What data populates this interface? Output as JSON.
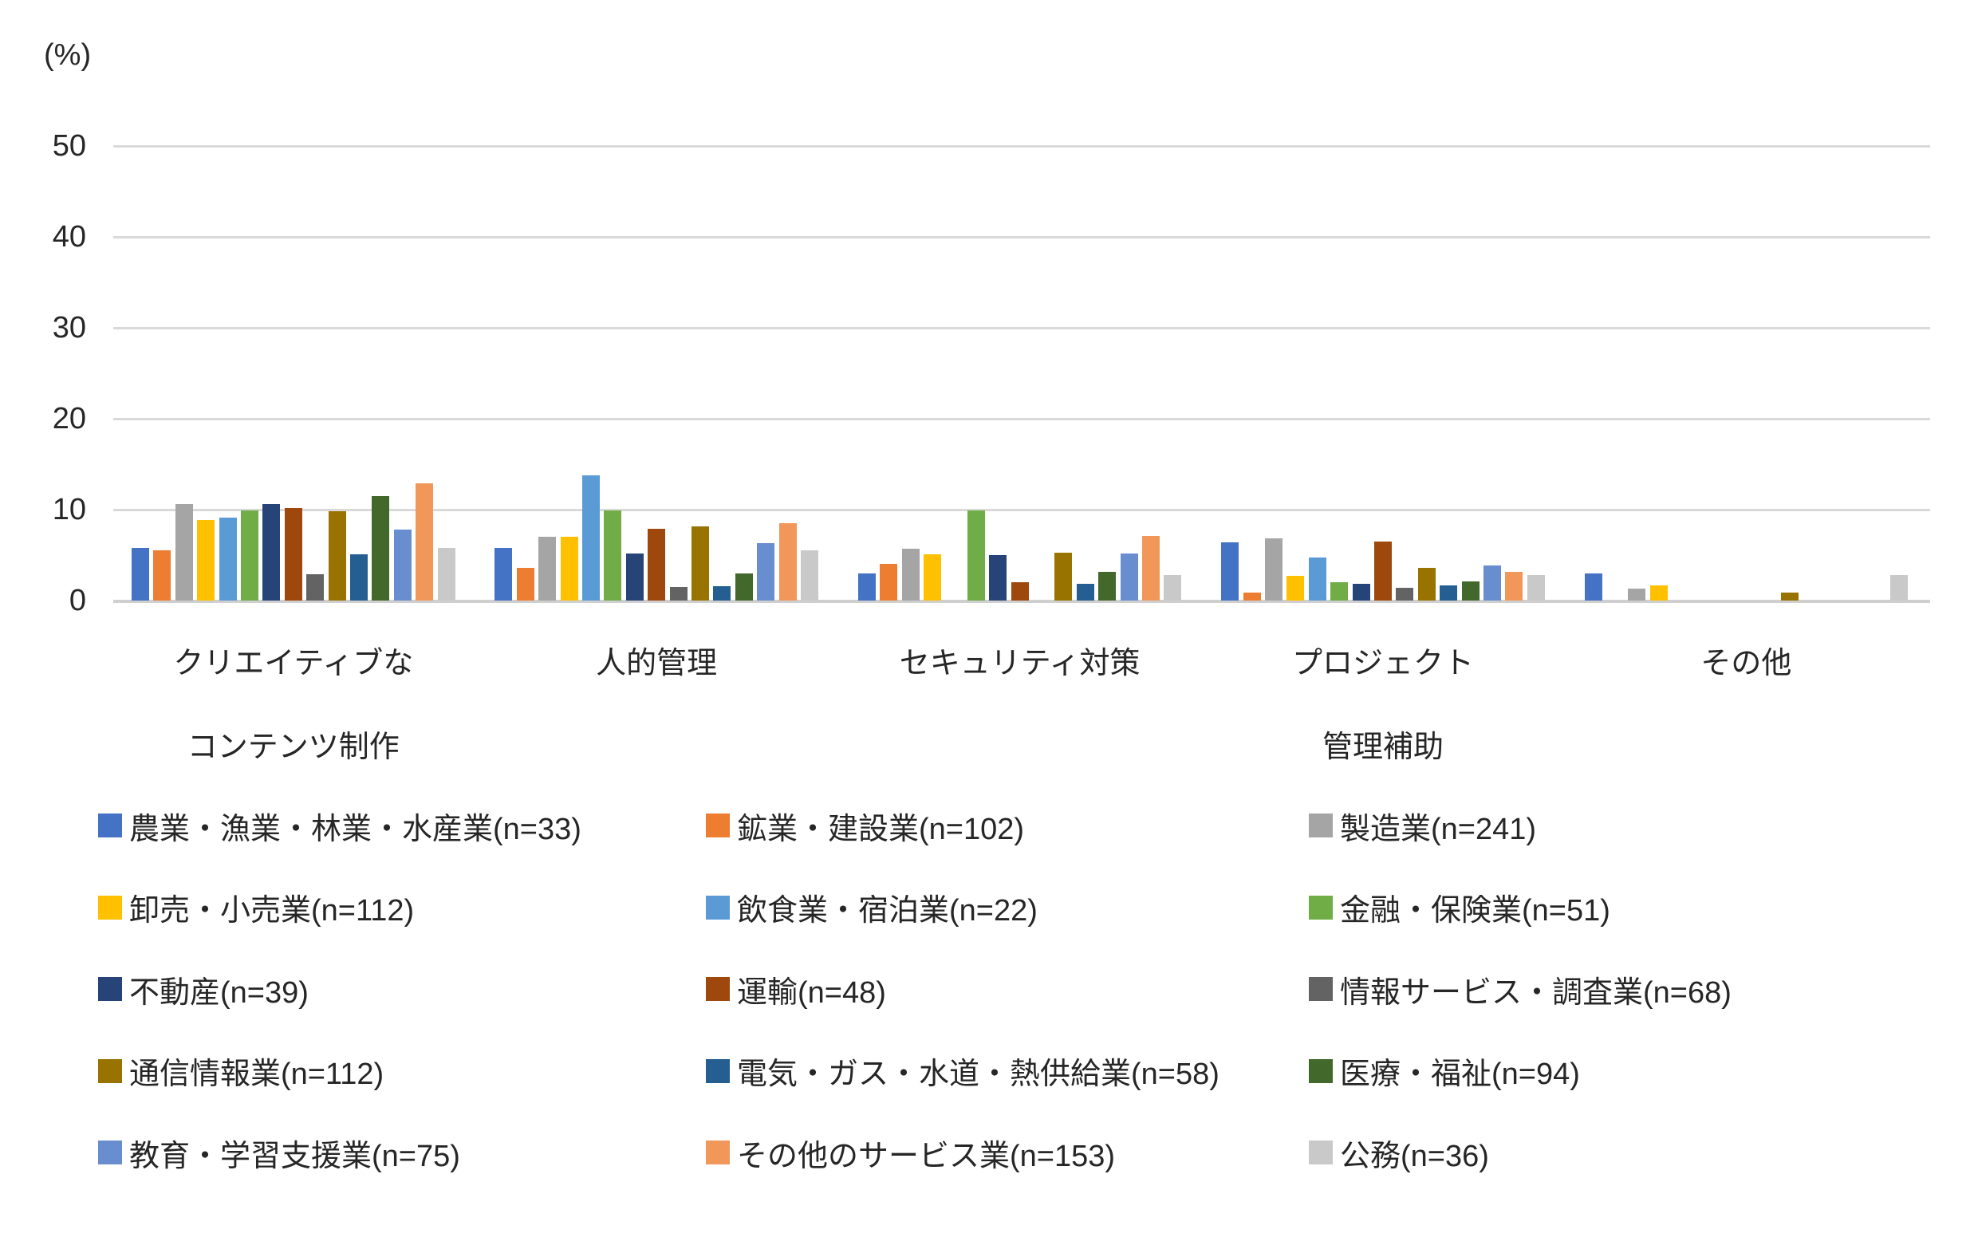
{
  "chart_data": {
    "type": "bar",
    "title": "",
    "unit_label": "(%)",
    "xlabel": "",
    "ylabel": "(%)",
    "ylim": [
      0,
      50
    ],
    "yticks": [
      0,
      10,
      20,
      30,
      40,
      50
    ],
    "grid": true,
    "legend_position": "bottom",
    "categories": [
      "クリエイティブな\nコンテンツ制作",
      "人的管理",
      "セキュリティ対策",
      "プロジェクト\n管理補助",
      "その他"
    ],
    "series": [
      {
        "name": "農業・漁業・林業・水産業(n=33)",
        "color": "#4472C4",
        "values": [
          5.8,
          5.8,
          3.0,
          6.4,
          3.0
        ]
      },
      {
        "name": "鉱業・建設業(n=102)",
        "color": "#ED7D31",
        "values": [
          5.5,
          3.6,
          4.0,
          0.9,
          0
        ]
      },
      {
        "name": "製造業(n=241)",
        "color": "#A5A5A5",
        "values": [
          10.6,
          7.0,
          5.7,
          6.8,
          1.3
        ]
      },
      {
        "name": "卸売・小売業(n=112)",
        "color": "#FFC000",
        "values": [
          8.9,
          7.0,
          5.1,
          2.7,
          1.7
        ]
      },
      {
        "name": "飲食業・宿泊業(n=22)",
        "color": "#5B9BD5",
        "values": [
          9.1,
          13.8,
          0,
          4.7,
          0
        ]
      },
      {
        "name": "金融・保険業(n=51)",
        "color": "#70AD47",
        "values": [
          9.9,
          9.9,
          9.9,
          2.0,
          0
        ]
      },
      {
        "name": "不動産(n=39)",
        "color": "#264478",
        "values": [
          10.6,
          5.2,
          5.0,
          1.8,
          0
        ]
      },
      {
        "name": "運輸(n=48)",
        "color": "#9E480E",
        "values": [
          10.2,
          7.9,
          2.0,
          6.5,
          0
        ]
      },
      {
        "name": "情報サービス・調査業(n=68)",
        "color": "#636363",
        "values": [
          2.9,
          1.5,
          0,
          1.4,
          0
        ]
      },
      {
        "name": "通信情報業(n=112)",
        "color": "#997300",
        "values": [
          9.8,
          8.2,
          5.3,
          3.6,
          0.9
        ]
      },
      {
        "name": "電気・ガス・水道・熱供給業(n=58)",
        "color": "#255E91",
        "values": [
          5.1,
          1.6,
          1.8,
          1.7,
          0
        ]
      },
      {
        "name": "医療・福祉(n=94)",
        "color": "#43682B",
        "values": [
          11.5,
          3.0,
          3.2,
          2.1,
          0
        ]
      },
      {
        "name": "教育・学習支援業(n=75)",
        "color": "#698ED0",
        "values": [
          7.8,
          6.3,
          5.2,
          3.9,
          0
        ]
      },
      {
        "name": "その他のサービス業(n=153)",
        "color": "#F1975A",
        "values": [
          12.9,
          8.5,
          7.1,
          3.2,
          0
        ]
      },
      {
        "name": "公務(n=36)",
        "color": "#C9C9C9",
        "values": [
          5.8,
          5.5,
          2.8,
          2.8,
          2.8
        ]
      }
    ]
  }
}
